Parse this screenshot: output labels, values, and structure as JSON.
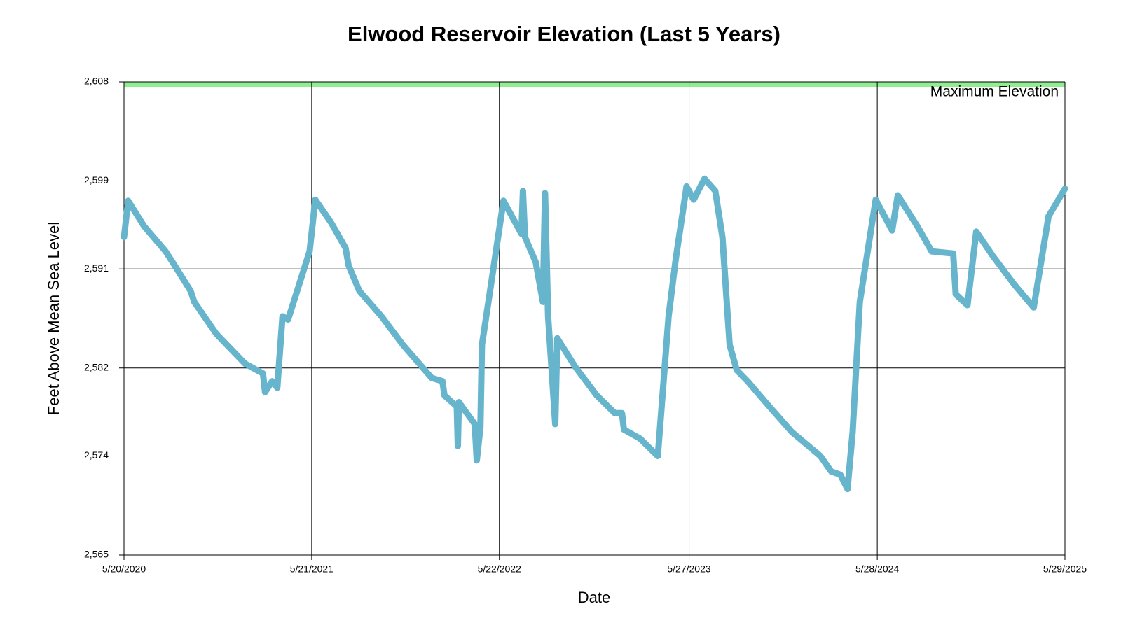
{
  "chart_data": {
    "type": "line",
    "title": "Elwood Reservoir Elevation (Last 5 Years)",
    "x_label": "Date",
    "y_label": "Feet Above Mean Sea Level",
    "x": [
      "5/20/2020",
      "5/28/2020",
      "6/28/2020",
      "8/9/2020",
      "8/23/2020",
      "9/27/2020",
      "10/4/2020",
      "11/16/2020",
      "1/11/2021",
      "2/15/2021",
      "2/19/2021",
      "3/5/2021",
      "3/15/2021",
      "3/25/2021",
      "4/5/2021",
      "5/17/2021",
      "5/28/2021",
      "6/28/2021",
      "7/26/2021",
      "8/1/2021",
      "8/22/2021",
      "10/4/2021",
      "11/15/2021",
      "1/10/2022",
      "1/31/2022",
      "2/4/2022",
      "2/28/2022",
      "3/2/2022",
      "3/4/2022",
      "4/4/2022",
      "4/8/2022",
      "4/15/2022",
      "4/18/2022",
      "5/9/2022",
      "5/30/2022",
      "7/4/2022",
      "7/7/2022",
      "7/11/2022",
      "8/1/2022",
      "8/15/2022",
      "8/19/2022",
      "8/25/2022",
      "9/8/2022",
      "9/12/2022",
      "10/17/2022",
      "11/28/2022",
      "1/2/2023",
      "1/16/2023",
      "1/20/2023",
      "2/20/2023",
      "3/27/2023",
      "4/3/2023",
      "4/17/2023",
      "5/1/2023",
      "5/22/2023",
      "6/5/2023",
      "6/26/2023",
      "7/17/2023",
      "7/31/2023",
      "8/14/2023",
      "8/28/2023",
      "9/18/2023",
      "10/23/2023",
      "12/13/2023",
      "2/7/2024",
      "2/28/2024",
      "3/17/2024",
      "3/31/2024",
      "4/10/2024",
      "4/24/2024",
      "5/25/2024",
      "6/26/2024",
      "7/7/2024",
      "8/14/2024",
      "9/11/2024",
      "10/23/2024",
      "10/28/2024",
      "11/20/2024",
      "12/7/2024",
      "1/8/2025",
      "2/19/2025",
      "3/29/2025",
      "4/27/2025",
      "5/29/2025"
    ],
    "series": [
      {
        "color": "#66b5cd",
        "values": [
          2593.9,
          2597.2,
          2594.9,
          2592.6,
          2591.6,
          2589.0,
          2588.0,
          2585.1,
          2582.4,
          2581.5,
          2579.8,
          2580.8,
          2580.2,
          2586.7,
          2586.4,
          2592.6,
          2597.3,
          2595.2,
          2592.9,
          2591.3,
          2589.0,
          2586.7,
          2584.1,
          2581.1,
          2580.8,
          2579.5,
          2578.5,
          2574.9,
          2578.9,
          2576.9,
          2573.6,
          2576.6,
          2584.1,
          2590.6,
          2597.2,
          2594.2,
          2598.1,
          2593.9,
          2591.6,
          2588.0,
          2597.9,
          2586.7,
          2576.9,
          2584.7,
          2582.1,
          2579.5,
          2577.9,
          2577.9,
          2576.4,
          2575.6,
          2574.0,
          2578.2,
          2586.7,
          2591.9,
          2598.5,
          2597.3,
          2599.2,
          2598.1,
          2593.9,
          2584.1,
          2581.8,
          2580.8,
          2578.9,
          2576.2,
          2574.0,
          2572.6,
          2572.3,
          2571.0,
          2576.2,
          2588.0,
          2597.3,
          2594.5,
          2597.7,
          2594.9,
          2592.6,
          2592.4,
          2588.7,
          2587.7,
          2594.4,
          2592.2,
          2589.6,
          2587.5,
          2595.8,
          2598.3
        ]
      }
    ],
    "xlim": [
      "5/20/2020",
      "5/29/2025"
    ],
    "xticks": [
      "5/20/2020",
      "5/21/2021",
      "5/22/2022",
      "5/27/2023",
      "5/28/2024",
      "5/29/2025"
    ],
    "ylim": [
      2565,
      2608
    ],
    "yticks": [
      {
        "value": 2565,
        "label": "2,565"
      },
      {
        "value": 2574,
        "label": "2,574"
      },
      {
        "value": 2582,
        "label": "2,582"
      },
      {
        "value": 2591,
        "label": "2,591"
      },
      {
        "value": 2599,
        "label": "2,599"
      },
      {
        "value": 2608,
        "label": "2,608"
      }
    ],
    "grid": true,
    "annotations": [
      {
        "text": "Maximum Elevation",
        "value": 2608,
        "color": "#90ee90",
        "text_color": "#137a13"
      }
    ]
  }
}
